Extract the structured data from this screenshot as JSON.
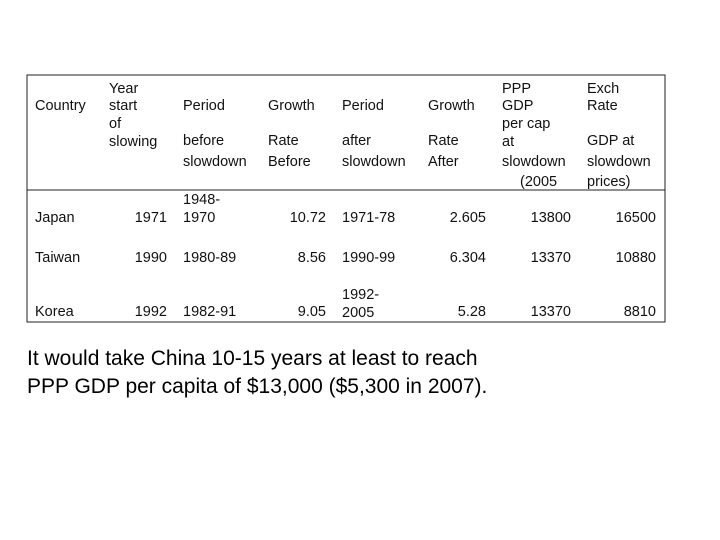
{
  "table": {
    "header": [
      [
        "Country"
      ],
      [
        "Year",
        "start",
        "of",
        "slowing"
      ],
      [
        "Period",
        "before",
        "slowdown"
      ],
      [
        "Growth",
        "Rate",
        "Before"
      ],
      [
        "Period",
        "after",
        "slowdown"
      ],
      [
        "Growth",
        "Rate",
        "After"
      ],
      [
        "PPP",
        "GDP",
        "per cap",
        "at",
        "slowdown",
        "(2005"
      ],
      [
        "Exch",
        "Rate",
        "GDP at",
        "slowdown",
        "prices)"
      ]
    ],
    "rows": [
      [
        "Japan",
        1971,
        [
          "1948-",
          "1970"
        ],
        10.72,
        [
          "1971-78"
        ],
        2.605,
        13800,
        16500
      ],
      [
        "Taiwan",
        1990,
        [
          "1980-89"
        ],
        8.56,
        [
          "1990-99"
        ],
        6.304,
        13370,
        10880
      ],
      [
        "Korea",
        1992,
        [
          "1982-91"
        ],
        9.05,
        [
          "1992-",
          "2005"
        ],
        5.28,
        13370,
        8810
      ]
    ]
  },
  "caption": [
    "It would take China 10-15 years at least to reach",
    "PPP GDP per capita of $13,000 ($5,300 in 2007)."
  ]
}
